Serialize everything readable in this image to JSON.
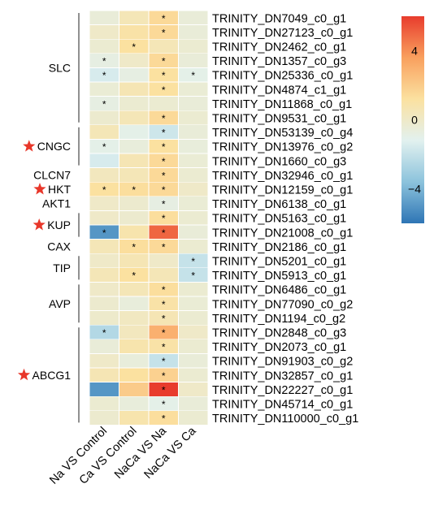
{
  "chart_data": {
    "type": "heatmap",
    "columns": [
      "Na VS Control",
      "Ca VS Control",
      "NaCa VS Na",
      "NaCa VS Ca"
    ],
    "rows": [
      "TRINITY_DN7049_c0_g1",
      "TRINITY_DN27123_c0_g1",
      "TRINITY_DN2462_c0_g1",
      "TRINITY_DN1357_c0_g3",
      "TRINITY_DN25336_c0_g1",
      "TRINITY_DN4874_c1_g1",
      "TRINITY_DN11868_c0_g1",
      "TRINITY_DN9531_c0_g1",
      "TRINITY_DN53139_c0_g4",
      "TRINITY_DN13976_c0_g2",
      "TRINITY_DN1660_c0_g3",
      "TRINITY_DN32946_c0_g1",
      "TRINITY_DN12159_c0_g1",
      "TRINITY_DN6138_c0_g1",
      "TRINITY_DN5163_c0_g1",
      "TRINITY_DN21008_c0_g1",
      "TRINITY_DN2186_c0_g1",
      "TRINITY_DN5201_c0_g1",
      "TRINITY_DN5913_c0_g1",
      "TRINITY_DN6486_c0_g1",
      "TRINITY_DN77090_c0_g2",
      "TRINITY_DN1194_c0_g2",
      "TRINITY_DN2848_c0_g3",
      "TRINITY_DN2073_c0_g1",
      "TRINITY_DN91903_c0_g2",
      "TRINITY_DN32857_c0_g1",
      "TRINITY_DN22227_c0_g1",
      "TRINITY_DN45714_c0_g1",
      "TRINITY_DN110000_c0_g1"
    ],
    "values": [
      [
        -0.5,
        0.5,
        1.5,
        -0.5
      ],
      [
        0.0,
        1.0,
        1.5,
        -0.5
      ],
      [
        -0.3,
        1.2,
        0.5,
        -0.3
      ],
      [
        -0.8,
        0.0,
        1.5,
        -0.5
      ],
      [
        -1.5,
        -0.8,
        1.2,
        -1.0
      ],
      [
        -0.4,
        0.6,
        1.2,
        -0.4
      ],
      [
        -0.8,
        -0.3,
        -0.3,
        -0.5
      ],
      [
        -0.2,
        0.5,
        1.5,
        -0.3
      ],
      [
        0.5,
        -1.0,
        -1.8,
        -0.5
      ],
      [
        -1.0,
        -0.6,
        1.2,
        -0.6
      ],
      [
        -1.5,
        0.6,
        1.5,
        -0.4
      ],
      [
        0.3,
        0.5,
        1.5,
        -0.3
      ],
      [
        1.2,
        1.3,
        1.5,
        0.0
      ],
      [
        0.0,
        -0.2,
        -0.8,
        -0.4
      ],
      [
        0.0,
        -0.2,
        1.3,
        -0.3
      ],
      [
        -5.0,
        0.8,
        5.0,
        -0.5
      ],
      [
        0.5,
        1.3,
        1.5,
        -0.3
      ],
      [
        0.0,
        0.6,
        0.0,
        -2.0
      ],
      [
        0.5,
        1.2,
        0.5,
        -2.0
      ],
      [
        0.0,
        0.5,
        1.3,
        -0.3
      ],
      [
        -0.2,
        -0.6,
        1.0,
        -0.4
      ],
      [
        -0.1,
        0.2,
        0.6,
        -0.3
      ],
      [
        -2.5,
        0.3,
        3.0,
        0.0
      ],
      [
        -0.5,
        0.8,
        1.0,
        -0.3
      ],
      [
        0.0,
        -0.6,
        -2.0,
        -0.5
      ],
      [
        0.6,
        1.2,
        1.8,
        -0.3
      ],
      [
        -5.0,
        2.0,
        6.0,
        0.0
      ],
      [
        -0.3,
        -0.6,
        -1.0,
        -0.5
      ],
      [
        -0.2,
        0.8,
        1.3,
        -0.3
      ]
    ],
    "significant": [
      [
        0,
        2
      ],
      [
        1,
        2
      ],
      [
        2,
        1
      ],
      [
        3,
        0
      ],
      [
        3,
        2
      ],
      [
        4,
        0
      ],
      [
        4,
        2
      ],
      [
        4,
        3
      ],
      [
        5,
        2
      ],
      [
        6,
        0
      ],
      [
        7,
        2
      ],
      [
        8,
        2
      ],
      [
        9,
        0
      ],
      [
        9,
        2
      ],
      [
        10,
        2
      ],
      [
        11,
        2
      ],
      [
        12,
        0
      ],
      [
        12,
        1
      ],
      [
        12,
        2
      ],
      [
        13,
        2
      ],
      [
        14,
        2
      ],
      [
        15,
        0
      ],
      [
        15,
        2
      ],
      [
        16,
        1
      ],
      [
        16,
        2
      ],
      [
        17,
        3
      ],
      [
        18,
        1
      ],
      [
        18,
        3
      ],
      [
        19,
        2
      ],
      [
        20,
        2
      ],
      [
        21,
        2
      ],
      [
        22,
        0
      ],
      [
        22,
        2
      ],
      [
        23,
        2
      ],
      [
        24,
        2
      ],
      [
        25,
        2
      ],
      [
        26,
        2
      ],
      [
        27,
        2
      ],
      [
        28,
        2
      ]
    ],
    "significance_marker": "*",
    "groups": [
      {
        "label": "SLC",
        "start": 0,
        "end": 7,
        "starred": false
      },
      {
        "label": "CNGC",
        "start": 8,
        "end": 10,
        "starred": true
      },
      {
        "label": "CLCN7",
        "start": 11,
        "end": 11,
        "starred": false
      },
      {
        "label": "HKT",
        "start": 12,
        "end": 12,
        "starred": true
      },
      {
        "label": "AKT1",
        "start": 13,
        "end": 13,
        "starred": false
      },
      {
        "label": "KUP",
        "start": 14,
        "end": 15,
        "starred": true
      },
      {
        "label": "CAX",
        "start": 16,
        "end": 16,
        "starred": false
      },
      {
        "label": "TIP",
        "start": 17,
        "end": 18,
        "starred": false
      },
      {
        "label": "AVP",
        "start": 19,
        "end": 21,
        "starred": false
      },
      {
        "label": "ABCG1",
        "start": 22,
        "end": 28,
        "starred": true
      }
    ],
    "color_scale": {
      "range": [
        -6,
        6
      ],
      "ticks": [
        4,
        0,
        -4
      ],
      "colors": [
        "#2e75b5",
        "#8cc3dc",
        "#e2f1ef",
        "#fbe1a0",
        "#f9a05e",
        "#e83c2d"
      ]
    },
    "star_color": "#e8372a"
  }
}
